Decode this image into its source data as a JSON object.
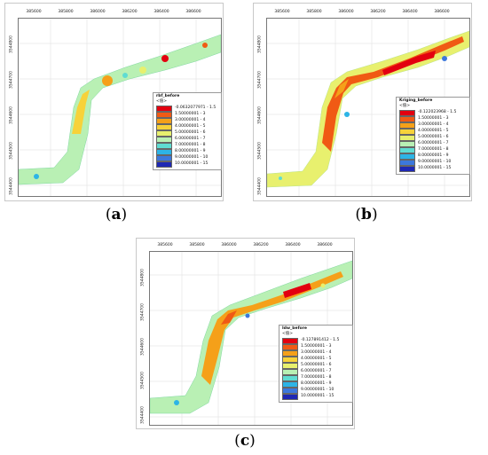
{
  "x_ticks": [
    "385600",
    "385800",
    "386000",
    "386200",
    "386400",
    "386600"
  ],
  "y_ticks": [
    "3544800",
    "3544700",
    "3544600",
    "3544500",
    "3544400"
  ],
  "panels": [
    {
      "caption_letter": "a",
      "legend_title": "rbf_before",
      "legend_unit": "<值>",
      "legend_items": [
        "-0.0632077971 - 1.5",
        "1.50000001 - 3",
        "3.00000001 - 4",
        "4.00000001 - 5",
        "5.00000001 - 6",
        "6.00000001 - 7",
        "7.00000001 - 8",
        "8.00000001 - 9",
        "9.00000001 - 10",
        "10.0000001 - 15"
      ]
    },
    {
      "caption_letter": "b",
      "legend_title": "Kriging_before",
      "legend_unit": "<值>",
      "legend_items": [
        "-0.122023968 - 1.5",
        "1.50000001 - 3",
        "3.00000001 - 4",
        "4.00000001 - 5",
        "5.00000001 - 6",
        "6.00000001 - 7",
        "7.00000001 - 8",
        "8.00000001 - 9",
        "9.00000001 - 10",
        "10.0000001 - 15"
      ]
    },
    {
      "caption_letter": "c",
      "legend_title": "Idw_before",
      "legend_unit": "<值>",
      "legend_items": [
        "-0.127891412 - 1.5",
        "1.50000001 - 3",
        "3.00000001 - 4",
        "4.00000001 - 5",
        "5.00000001 - 6",
        "6.00000001 - 7",
        "7.00000001 - 8",
        "8.00000001 - 9",
        "9.00000001 - 10",
        "10.0000001 - 15"
      ]
    }
  ],
  "legend_colors": [
    "#e3000f",
    "#f05a14",
    "#f5a019",
    "#f7d23a",
    "#e8f06e",
    "#b9f0b4",
    "#5fdcd2",
    "#2db4e6",
    "#3c78dc",
    "#1e28b4"
  ]
}
